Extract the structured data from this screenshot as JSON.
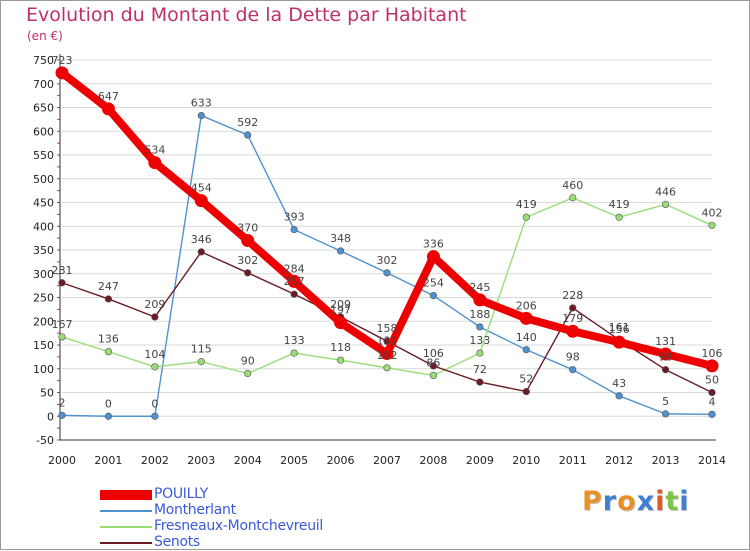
{
  "title": "Evolution du Montant de la Dette par Habitant",
  "subtitle": "(en €)",
  "logo_text": "Proxiti",
  "logo_colors": [
    "#e8912a",
    "#3d7fd4",
    "#e8912a",
    "#3d7fd4",
    "#e05a1e",
    "#7dc24a",
    "#3d7fd4"
  ],
  "colors": {
    "title": "#c0306a",
    "axis_text": "#222222",
    "grid": "#d9d9d9",
    "tick_marks": "#c0306a",
    "data_label": "#444444",
    "legend_text": "#3c5ad8"
  },
  "chart_data": {
    "type": "line",
    "title": "Evolution du Montant de la Dette par Habitant",
    "subtitle": "(en €)",
    "xlabel": "",
    "ylabel": "",
    "ylim": [
      -50,
      750
    ],
    "yticks": [
      -50,
      0,
      50,
      100,
      150,
      200,
      250,
      300,
      350,
      400,
      450,
      500,
      550,
      600,
      650,
      700,
      750
    ],
    "x": [
      2000,
      2001,
      2002,
      2003,
      2004,
      2005,
      2006,
      2007,
      2008,
      2009,
      2010,
      2011,
      2012,
      2013,
      2014
    ],
    "grid": "horizontal",
    "legend_position": "bottom-left",
    "series": [
      {
        "name": "POUILLY",
        "color": "#ee0000",
        "values": [
          723,
          647,
          534,
          454,
          370,
          284,
          197,
          132,
          336,
          245,
          206,
          179,
          156,
          131,
          106
        ]
      },
      {
        "name": "Montherlant",
        "color": "#4f92cf",
        "values": [
          2,
          0,
          0,
          633,
          592,
          393,
          348,
          302,
          254,
          188,
          140,
          98,
          43,
          5,
          4
        ]
      },
      {
        "name": "Fresneaux-Montchevreuil",
        "color": "#99dd77",
        "values": [
          167,
          136,
          104,
          115,
          90,
          133,
          118,
          102,
          86,
          133,
          419,
          460,
          419,
          446,
          402
        ]
      },
      {
        "name": "Senots",
        "color": "#6b1b24",
        "values": [
          281,
          247,
          209,
          346,
          302,
          257,
          209,
          158,
          106,
          72,
          52,
          228,
          161,
          98,
          50
        ]
      }
    ]
  }
}
